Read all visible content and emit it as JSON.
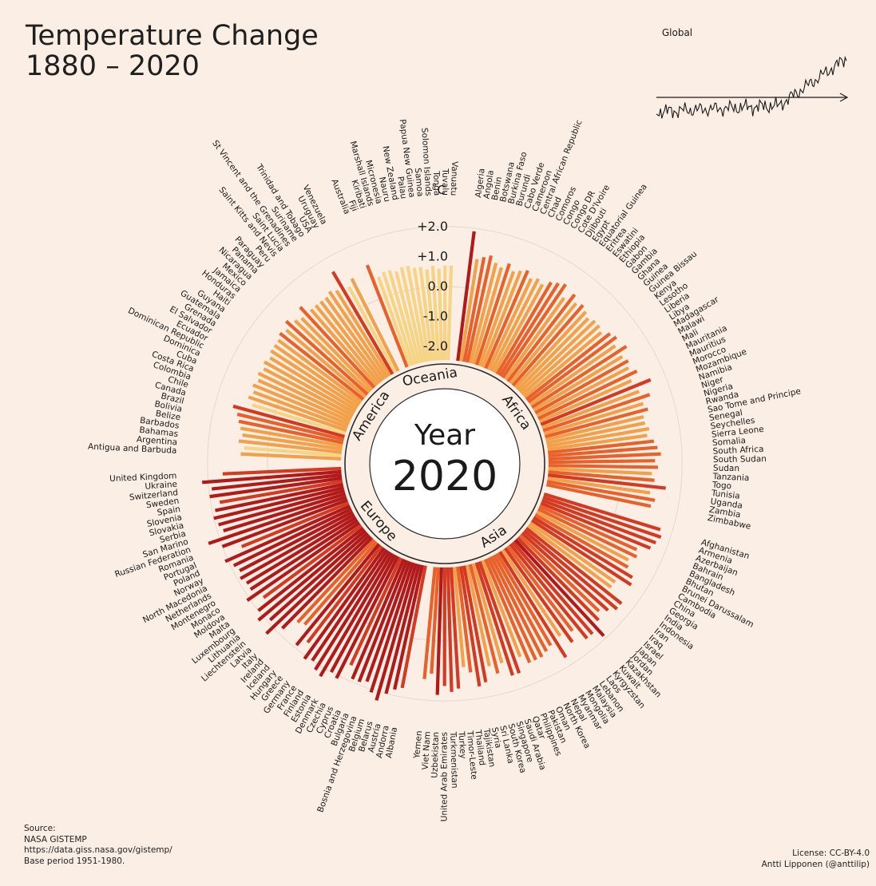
{
  "title_line1": "Temperature Change",
  "title_line2": "1880 – 2020",
  "source": {
    "label": "Source:",
    "name": "NASA GISTEMP",
    "url": "https://data.giss.nasa.gov/gistemp/",
    "base": "Base period 1951-1980."
  },
  "license": {
    "text": "License: CC-BY-4.0",
    "author": "Antti Lipponen (@anttilip)"
  },
  "colors": {
    "background": "#fbeee4",
    "hot": "#b01a1a",
    "warm": "#e8602a",
    "mild": "#f2a04a",
    "cool": "#f6d486"
  },
  "chart_data": {
    "type": "radial-bar",
    "year_label": "Year",
    "year": "2020",
    "unit_label": "˚C",
    "ticks": [
      "+2.0",
      "+1.0",
      "0.0",
      "-1.0",
      "-2.0"
    ],
    "tick_values": [
      2,
      1,
      0,
      -1,
      -2
    ],
    "range": [
      -2.5,
      2.5
    ],
    "regions": [
      "Oceania",
      "Africa",
      "Asia",
      "Europe",
      "America"
    ],
    "inset": {
      "label": "Global",
      "type": "line"
    },
    "groups": [
      {
        "region": "Africa",
        "countries": [
          {
            "name": "Algeria",
            "value": 1.9
          },
          {
            "name": "Angola",
            "value": 1.0
          },
          {
            "name": "Benin",
            "value": 1.1
          },
          {
            "name": "Botswana",
            "value": 1.2
          },
          {
            "name": "Burkina Faso",
            "value": 1.0
          },
          {
            "name": "Burundi",
            "value": 0.9
          },
          {
            "name": "Cabo Verde",
            "value": 1.1
          },
          {
            "name": "Cameroon",
            "value": 0.9
          },
          {
            "name": "Central African Republic",
            "value": 1.0
          },
          {
            "name": "Chad",
            "value": 1.1
          },
          {
            "name": "Comoros",
            "value": 0.9
          },
          {
            "name": "Congo",
            "value": 1.0
          },
          {
            "name": "Congo DR",
            "value": 0.9
          },
          {
            "name": "Cote D'Ivoire",
            "value": 1.1
          },
          {
            "name": "Djibouti",
            "value": 1.2
          },
          {
            "name": "Egypt",
            "value": 1.3
          },
          {
            "name": "Equatorial Guinea",
            "value": 0.9
          },
          {
            "name": "Eritrea",
            "value": 1.2
          },
          {
            "name": "Eswatini",
            "value": 1.0
          },
          {
            "name": "Ethiopia",
            "value": 1.1
          },
          {
            "name": "Gabon",
            "value": 1.0
          },
          {
            "name": "Gambia",
            "value": 0.9
          },
          {
            "name": "Ghana",
            "value": 1.0
          },
          {
            "name": "Guinea",
            "value": 1.0
          },
          {
            "name": "Guinea Bissau",
            "value": 0.9
          },
          {
            "name": "Kenya",
            "value": 1.1
          },
          {
            "name": "Lesotho",
            "value": 1.2
          },
          {
            "name": "Liberia",
            "value": 1.0
          },
          {
            "name": "Libya",
            "value": 1.3
          },
          {
            "name": "Madagascar",
            "value": 1.0
          },
          {
            "name": "Malawi",
            "value": 1.1
          },
          {
            "name": "Mali",
            "value": 1.0
          },
          {
            "name": "Mauritania",
            "value": 1.2
          },
          {
            "name": "Mauritius",
            "value": 0.9
          },
          {
            "name": "Morocco",
            "value": 1.5
          },
          {
            "name": "Mozambique",
            "value": 1.0
          },
          {
            "name": "Namibia",
            "value": 1.3
          },
          {
            "name": "Niger",
            "value": 1.0
          },
          {
            "name": "Nigeria",
            "value": 1.1
          },
          {
            "name": "Rwanda",
            "value": 0.9
          },
          {
            "name": "Sao Tome and Principe",
            "value": 0.9
          },
          {
            "name": "Senegal",
            "value": 1.0
          },
          {
            "name": "Seychelles",
            "value": 0.9
          },
          {
            "name": "Sierra Leone",
            "value": 1.1
          },
          {
            "name": "Somalia",
            "value": 1.2
          },
          {
            "name": "South Africa",
            "value": 1.3
          },
          {
            "name": "South Sudan",
            "value": 1.1
          },
          {
            "name": "Sudan",
            "value": 1.2
          },
          {
            "name": "Tanzania",
            "value": 1.0
          },
          {
            "name": "Togo",
            "value": 1.1
          },
          {
            "name": "Tunisia",
            "value": 1.5
          },
          {
            "name": "Uganda",
            "value": 1.0
          },
          {
            "name": "Zambia",
            "value": 1.2
          },
          {
            "name": "Zimbabwe",
            "value": 1.1
          }
        ]
      },
      {
        "region": "Asia",
        "countries": [
          {
            "name": "Afghanistan",
            "value": 1.6
          },
          {
            "name": "Armenia",
            "value": 1.7
          },
          {
            "name": "Azerbaijan",
            "value": 1.6
          },
          {
            "name": "Bahrain",
            "value": 1.5
          },
          {
            "name": "Bangladesh",
            "value": 1.1
          },
          {
            "name": "Bhutan",
            "value": 1.2
          },
          {
            "name": "Brunei Darussalam",
            "value": 1.0
          },
          {
            "name": "Cambodia",
            "value": 1.1
          },
          {
            "name": "China",
            "value": 1.4
          },
          {
            "name": "Georgia",
            "value": 1.5
          },
          {
            "name": "India",
            "value": 1.0
          },
          {
            "name": "Indonesia",
            "value": 1.0
          },
          {
            "name": "Iran",
            "value": 1.6
          },
          {
            "name": "Iraq",
            "value": 1.6
          },
          {
            "name": "Israel",
            "value": 1.4
          },
          {
            "name": "Japan",
            "value": 1.2
          },
          {
            "name": "Jordan",
            "value": 1.4
          },
          {
            "name": "Kazakhstan",
            "value": 1.9
          },
          {
            "name": "Kuwait",
            "value": 1.6
          },
          {
            "name": "Kyrgyzstan",
            "value": 1.6
          },
          {
            "name": "Laos",
            "value": 1.1
          },
          {
            "name": "Lebanon",
            "value": 1.4
          },
          {
            "name": "Malaysia",
            "value": 1.0
          },
          {
            "name": "Mongolia",
            "value": 1.7
          },
          {
            "name": "Myanmar",
            "value": 1.1
          },
          {
            "name": "Nepal",
            "value": 1.2
          },
          {
            "name": "North Korea",
            "value": 1.3
          },
          {
            "name": "Oman",
            "value": 1.3
          },
          {
            "name": "Pakistan",
            "value": 1.3
          },
          {
            "name": "Philippines",
            "value": 1.0
          },
          {
            "name": "Qatar",
            "value": 1.5
          },
          {
            "name": "Saudi Arabia",
            "value": 1.5
          },
          {
            "name": "Singapore",
            "value": 1.0
          },
          {
            "name": "South Korea",
            "value": 1.3
          },
          {
            "name": "Sri Lanka",
            "value": 1.0
          },
          {
            "name": "Syria",
            "value": 1.5
          },
          {
            "name": "Tajikistan",
            "value": 1.6
          },
          {
            "name": "Thailand",
            "value": 1.1
          },
          {
            "name": "Timor-Leste",
            "value": 0.9
          },
          {
            "name": "Turkey",
            "value": 1.6
          },
          {
            "name": "Turkmenistan",
            "value": 1.7
          },
          {
            "name": "United Arab Emirates",
            "value": 1.5
          },
          {
            "name": "Uzbekistan",
            "value": 1.8
          },
          {
            "name": "Viet Nam",
            "value": 1.1
          },
          {
            "name": "Yemen",
            "value": 1.3
          }
        ]
      },
      {
        "region": "Europe",
        "countries": [
          {
            "name": "Albania",
            "value": 1.7
          },
          {
            "name": "Andorra",
            "value": 1.8
          },
          {
            "name": "Austria",
            "value": 2.0
          },
          {
            "name": "Belarus",
            "value": 2.3
          },
          {
            "name": "Belgium",
            "value": 2.1
          },
          {
            "name": "Bosnia and Herzegovina",
            "value": 1.8
          },
          {
            "name": "Bulgaria",
            "value": 1.9
          },
          {
            "name": "Croatia",
            "value": 1.9
          },
          {
            "name": "Cyprus",
            "value": 1.5
          },
          {
            "name": "Czechia",
            "value": 2.1
          },
          {
            "name": "Denmark",
            "value": 2.0
          },
          {
            "name": "Estonia",
            "value": 2.3
          },
          {
            "name": "Finland",
            "value": 2.2
          },
          {
            "name": "France",
            "value": 2.0
          },
          {
            "name": "Germany",
            "value": 2.1
          },
          {
            "name": "Greece",
            "value": 1.6
          },
          {
            "name": "Hungary",
            "value": 1.9
          },
          {
            "name": "Iceland",
            "value": 1.2
          },
          {
            "name": "Ireland",
            "value": 1.3
          },
          {
            "name": "Italy",
            "value": 1.8
          },
          {
            "name": "Latvia",
            "value": 2.3
          },
          {
            "name": "Liechtenstein",
            "value": 1.9
          },
          {
            "name": "Lithuania",
            "value": 2.2
          },
          {
            "name": "Luxembourg",
            "value": 2.0
          },
          {
            "name": "Malta",
            "value": 1.6
          },
          {
            "name": "Moldova",
            "value": 2.1
          },
          {
            "name": "Monaco",
            "value": 1.8
          },
          {
            "name": "Montenegro",
            "value": 1.8
          },
          {
            "name": "Netherlands",
            "value": 1.9
          },
          {
            "name": "North Macedonia",
            "value": 1.8
          },
          {
            "name": "Norway",
            "value": 1.9
          },
          {
            "name": "Poland",
            "value": 2.1
          },
          {
            "name": "Portugal",
            "value": 1.4
          },
          {
            "name": "Romania",
            "value": 2.0
          },
          {
            "name": "Russian Federation",
            "value": 2.4
          },
          {
            "name": "San Marino",
            "value": 1.8
          },
          {
            "name": "Serbia",
            "value": 1.9
          },
          {
            "name": "Slovakia",
            "value": 2.0
          },
          {
            "name": "Slovenia",
            "value": 1.9
          },
          {
            "name": "Spain",
            "value": 1.7
          },
          {
            "name": "Sweden",
            "value": 2.0
          },
          {
            "name": "Switzerland",
            "value": 1.9
          },
          {
            "name": "Ukraine",
            "value": 2.2
          },
          {
            "name": "United Kingdom",
            "value": 1.5
          }
        ]
      },
      {
        "region": "America",
        "countries": [
          {
            "name": "Antigua and Barbuda",
            "value": 0.9
          },
          {
            "name": "Argentina",
            "value": 0.8
          },
          {
            "name": "Bahamas",
            "value": 1.0
          },
          {
            "name": "Barbados",
            "value": 0.9
          },
          {
            "name": "Belize",
            "value": 1.0
          },
          {
            "name": "Bolivia",
            "value": 1.1
          },
          {
            "name": "Brazil",
            "value": 1.2
          },
          {
            "name": "Canada",
            "value": 1.4
          },
          {
            "name": "Chile",
            "value": 0.8
          },
          {
            "name": "Colombia",
            "value": 1.0
          },
          {
            "name": "Costa Rica",
            "value": 0.9
          },
          {
            "name": "Cuba",
            "value": 1.0
          },
          {
            "name": "Dominica",
            "value": 0.9
          },
          {
            "name": "Dominican Republic",
            "value": 1.0
          },
          {
            "name": "Ecuador",
            "value": 0.9
          },
          {
            "name": "El Salvador",
            "value": 1.0
          },
          {
            "name": "Grenada",
            "value": 0.9
          },
          {
            "name": "Guatemala",
            "value": 1.0
          },
          {
            "name": "Guyana",
            "value": 1.0
          },
          {
            "name": "Haiti",
            "value": 1.0
          },
          {
            "name": "Honduras",
            "value": 1.1
          },
          {
            "name": "Jamaica",
            "value": 1.0
          },
          {
            "name": "Mexico",
            "value": 1.2
          },
          {
            "name": "Nicaragua",
            "value": 1.0
          },
          {
            "name": "Panama",
            "value": 0.9
          },
          {
            "name": "Paraguay",
            "value": 1.2
          },
          {
            "name": "Peru",
            "value": 0.9
          },
          {
            "name": "Saint Kitts and Nevis",
            "value": 0.9
          },
          {
            "name": "Saint Lucia",
            "value": 0.9
          },
          {
            "name": "St Vincent and the Grenadines",
            "value": 0.9
          },
          {
            "name": "Suriname",
            "value": 1.0
          },
          {
            "name": "Trinidad and Tobago",
            "value": 0.9
          },
          {
            "name": "USA",
            "value": 1.5
          },
          {
            "name": "Uruguay",
            "value": 0.8
          },
          {
            "name": "Venezuela",
            "value": 1.0
          }
        ]
      },
      {
        "region": "Oceania",
        "countries": [
          {
            "name": "Australia",
            "value": 1.2
          },
          {
            "name": "Fiji",
            "value": 0.7
          },
          {
            "name": "Kiribati",
            "value": 0.8
          },
          {
            "name": "Marshall Islands",
            "value": 0.8
          },
          {
            "name": "Micronesia",
            "value": 0.7
          },
          {
            "name": "Nauru",
            "value": 0.8
          },
          {
            "name": "New Zealand",
            "value": 0.8
          },
          {
            "name": "Palau",
            "value": 0.7
          },
          {
            "name": "Papua New Guinea",
            "value": 0.7
          },
          {
            "name": "Samoa",
            "value": 0.6
          },
          {
            "name": "Solomon Islands",
            "value": 0.7
          },
          {
            "name": "Tonga",
            "value": 0.6
          },
          {
            "name": "Tuvalu",
            "value": 0.7
          },
          {
            "name": "Vanuatu",
            "value": 0.7
          }
        ]
      }
    ]
  }
}
